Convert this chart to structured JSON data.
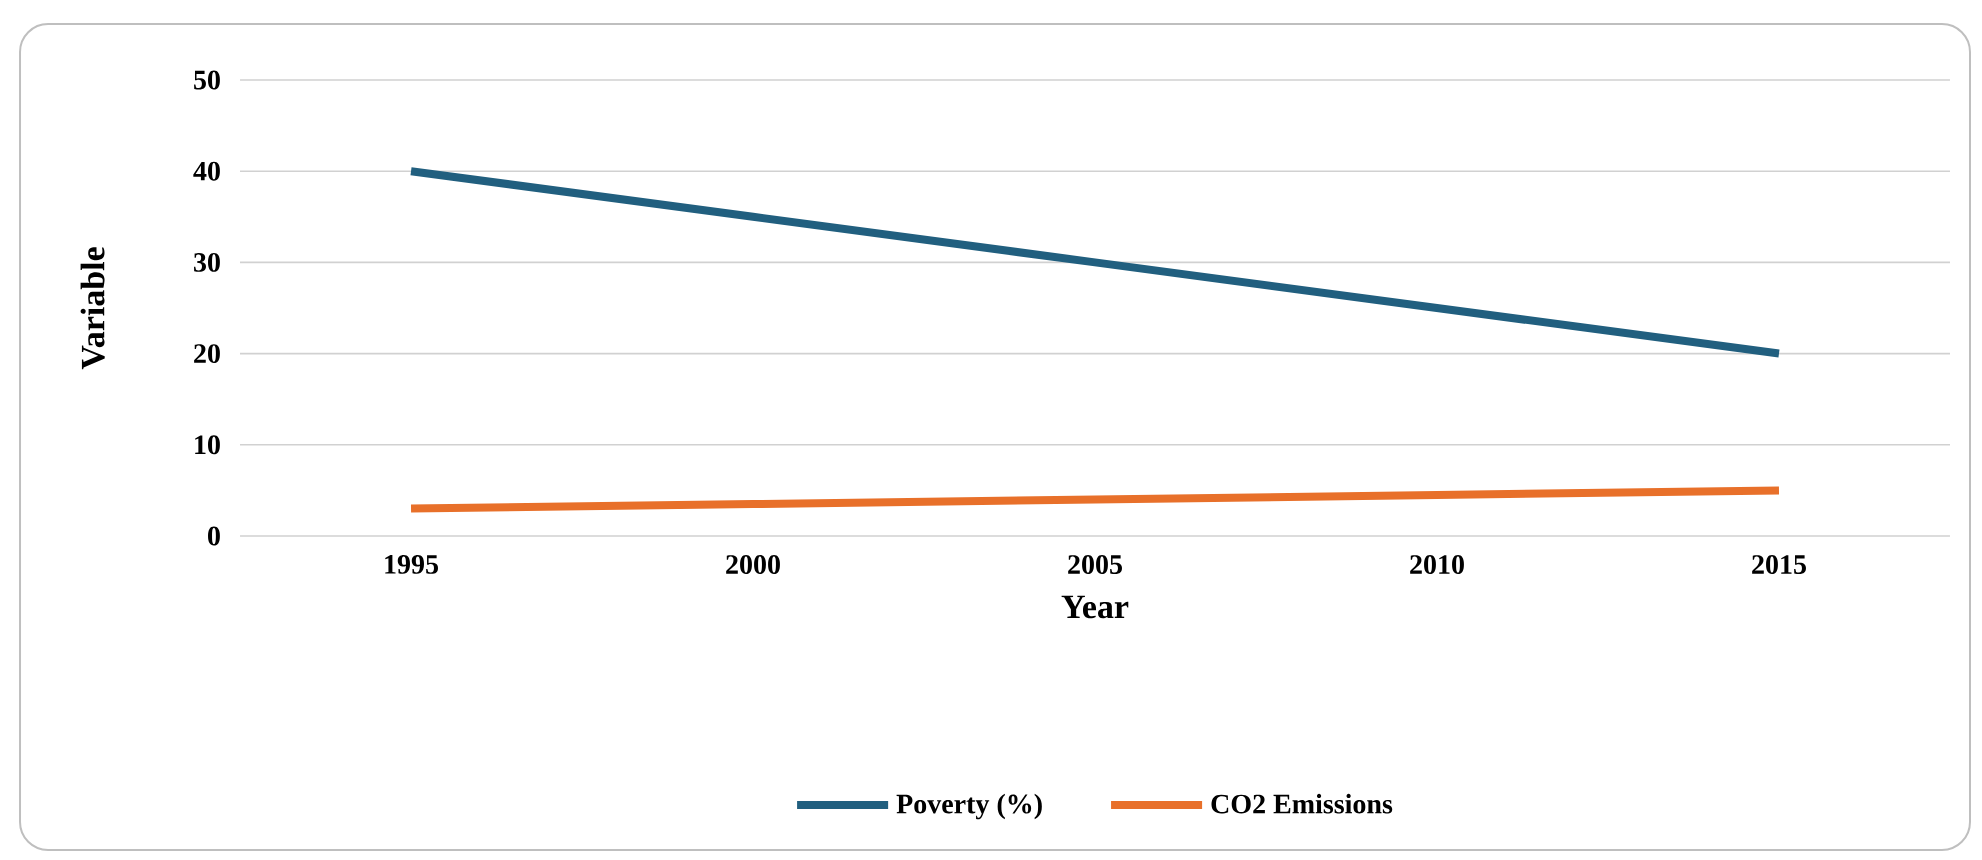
{
  "chart_data": {
    "type": "line",
    "xlabel": "Year",
    "ylabel": "Variable",
    "categories": [
      "1995",
      "2000",
      "2005",
      "2010",
      "2015"
    ],
    "series": [
      {
        "name": "Poverty (%)",
        "color": "#215f7f",
        "values": [
          40,
          35,
          30,
          25,
          20
        ]
      },
      {
        "name": "CO2 Emissions",
        "color": "#e8702a",
        "values": [
          3,
          3.5,
          4,
          4.5,
          5
        ]
      }
    ],
    "ylim": [
      0,
      50
    ],
    "yticks": [
      0,
      10,
      20,
      30,
      40,
      50
    ],
    "grid": "y",
    "legend": "bottom"
  }
}
